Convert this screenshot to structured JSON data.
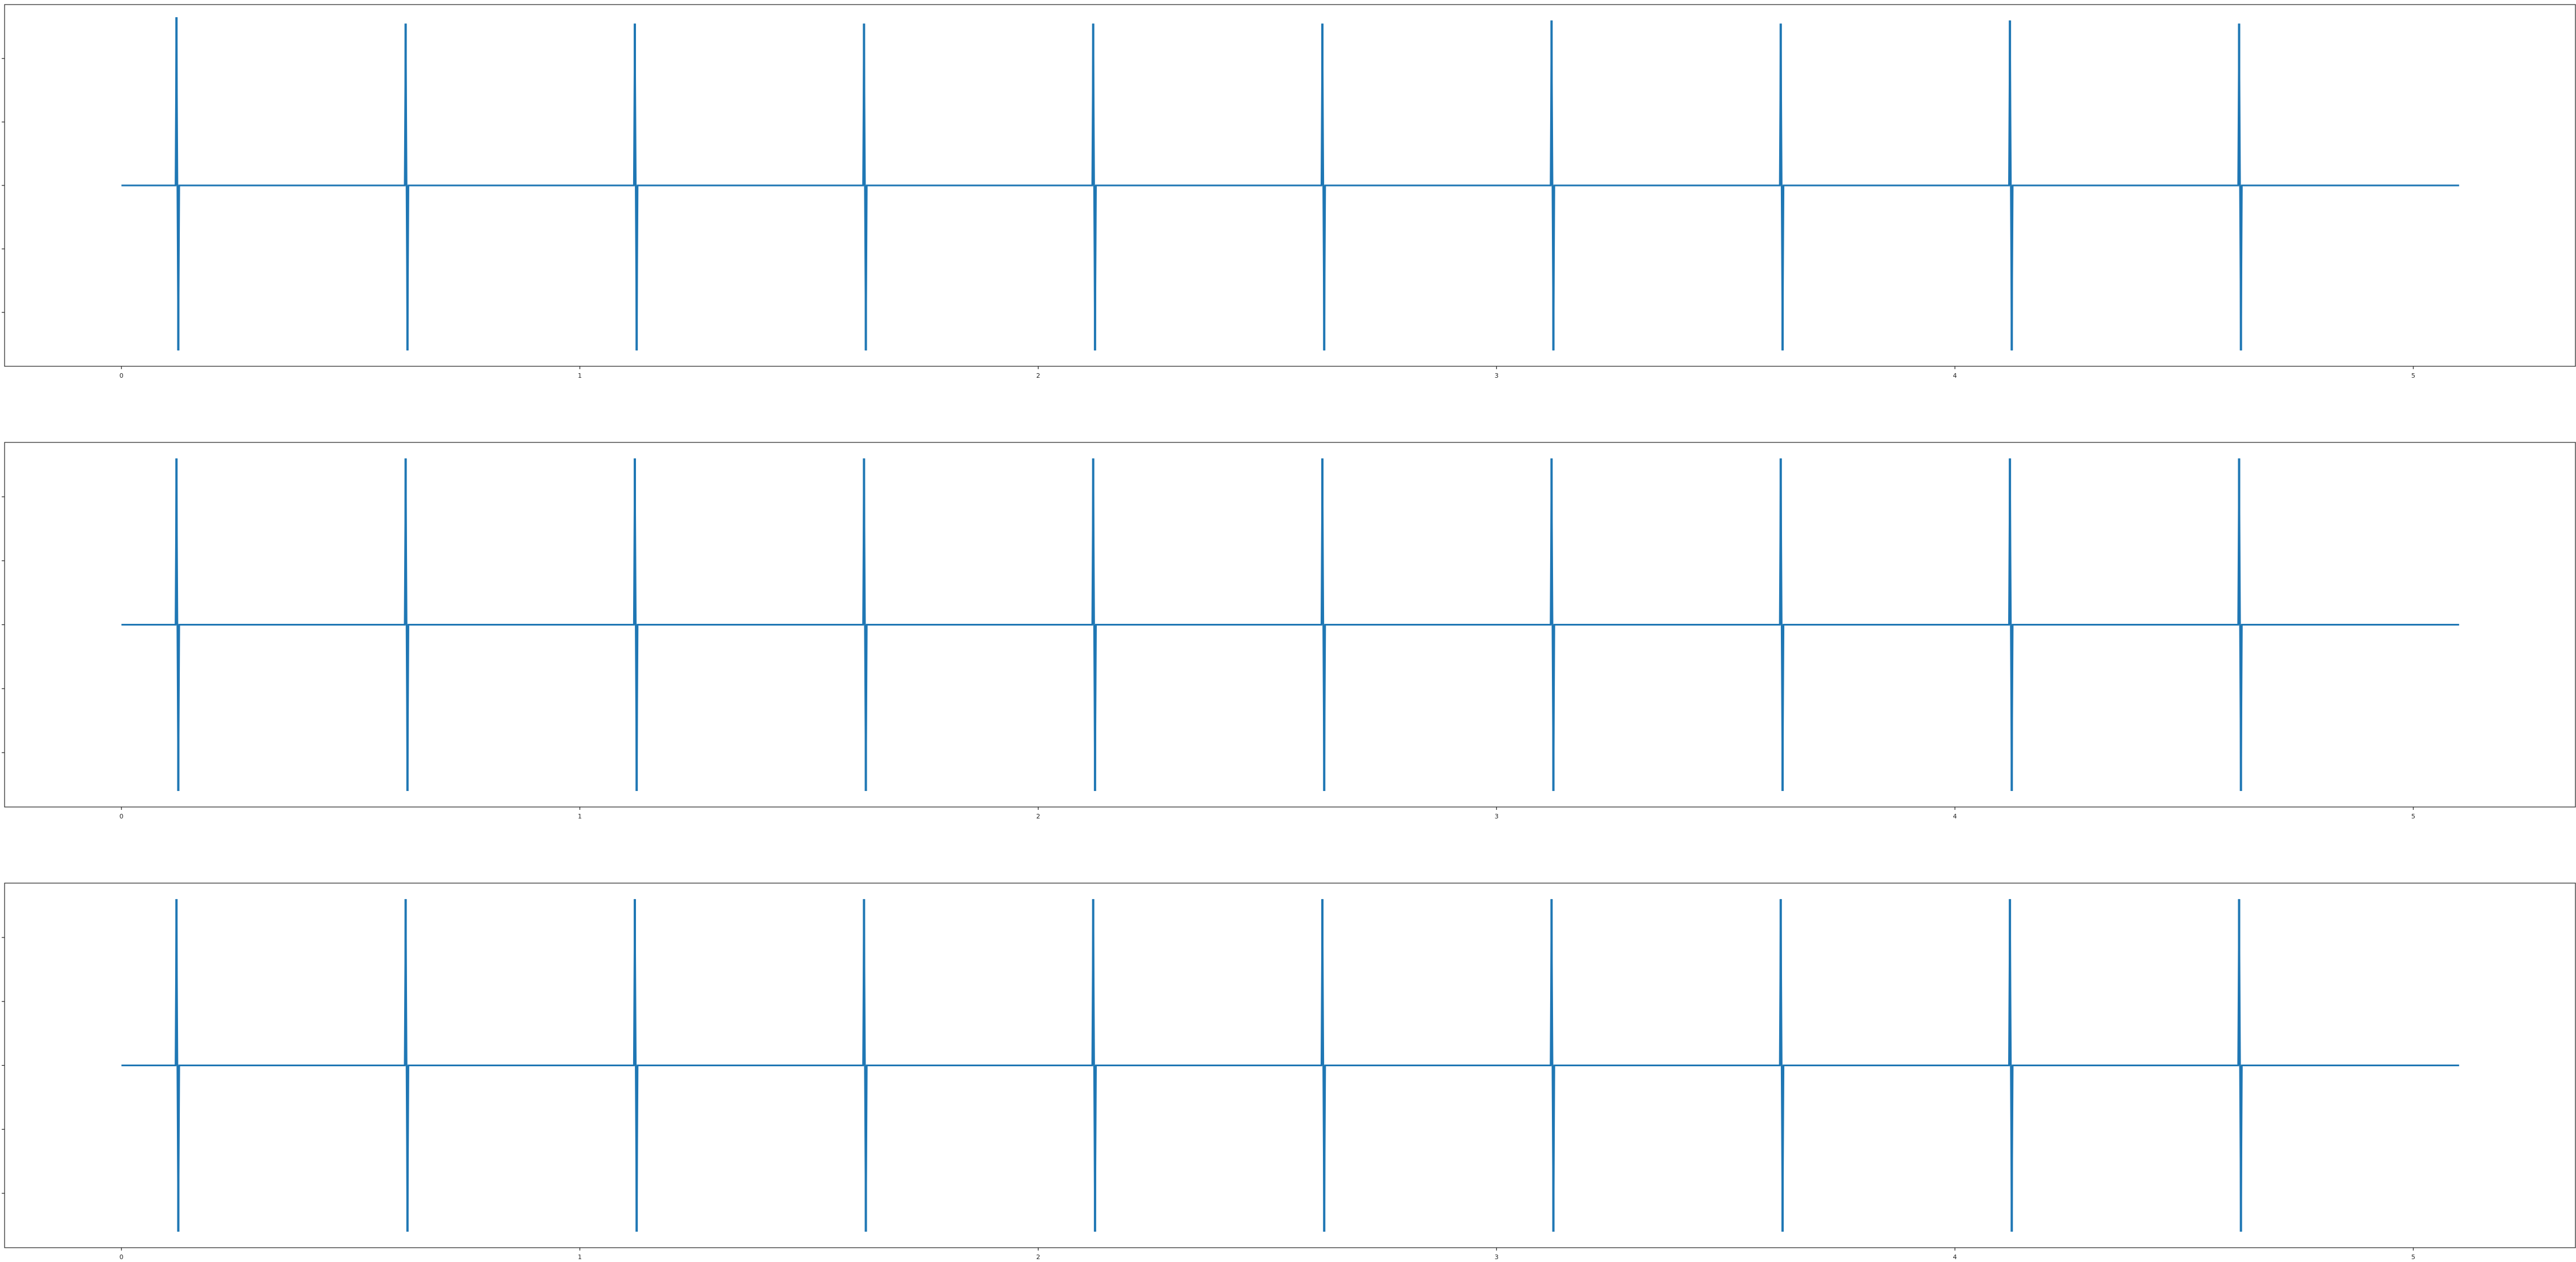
{
  "chart_data": [
    {
      "type": "line",
      "title": "",
      "xlabel": "",
      "ylabel": "",
      "xlim": [
        -0.255,
        5.355
      ],
      "ylim": [
        -5.7,
        5.7
      ],
      "xticks": [
        "0",
        "1",
        "2",
        "3",
        "4",
        "5"
      ],
      "yticks": [
        "-4",
        "-2",
        "0",
        "2",
        "4"
      ],
      "grid": false,
      "color": "#1f77b4",
      "series": [
        {
          "baseline": 0.0,
          "duration": 5.1,
          "spikes": [
            {
              "x": 0.12,
              "peak": 5.3,
              "trough": -5.2
            },
            {
              "x": 0.62,
              "peak": 5.1,
              "trough": -5.2
            },
            {
              "x": 1.12,
              "peak": 5.1,
              "trough": -5.2
            },
            {
              "x": 1.62,
              "peak": 5.1,
              "trough": -5.2
            },
            {
              "x": 2.12,
              "peak": 5.1,
              "trough": -5.2
            },
            {
              "x": 2.62,
              "peak": 5.1,
              "trough": -5.2
            },
            {
              "x": 3.12,
              "peak": 5.2,
              "trough": -5.2
            },
            {
              "x": 3.62,
              "peak": 5.1,
              "trough": -5.2
            },
            {
              "x": 4.12,
              "peak": 5.2,
              "trough": -5.2
            },
            {
              "x": 4.62,
              "peak": 5.1,
              "trough": -5.2
            }
          ]
        }
      ]
    },
    {
      "type": "line",
      "title": "",
      "xlabel": "",
      "ylabel": "",
      "xlim": [
        -0.255,
        5.355
      ],
      "ylim": [
        -5.7,
        5.7
      ],
      "xticks": [
        "0",
        "1",
        "2",
        "3",
        "4",
        "5"
      ],
      "yticks": [
        "-4",
        "-2",
        "0",
        "2",
        "4"
      ],
      "grid": false,
      "color": "#1f77b4",
      "series": [
        {
          "baseline": 0.0,
          "duration": 5.1,
          "spikes": [
            {
              "x": 0.12,
              "peak": 5.2,
              "trough": -5.2
            },
            {
              "x": 0.62,
              "peak": 5.2,
              "trough": -5.2
            },
            {
              "x": 1.12,
              "peak": 5.2,
              "trough": -5.2
            },
            {
              "x": 1.62,
              "peak": 5.2,
              "trough": -5.2
            },
            {
              "x": 2.12,
              "peak": 5.2,
              "trough": -5.2
            },
            {
              "x": 2.62,
              "peak": 5.2,
              "trough": -5.2
            },
            {
              "x": 3.12,
              "peak": 5.2,
              "trough": -5.2
            },
            {
              "x": 3.62,
              "peak": 5.2,
              "trough": -5.2
            },
            {
              "x": 4.12,
              "peak": 5.2,
              "trough": -5.2
            },
            {
              "x": 4.62,
              "peak": 5.2,
              "trough": -5.2
            }
          ]
        }
      ]
    },
    {
      "type": "line",
      "title": "",
      "xlabel": "",
      "ylabel": "",
      "xlim": [
        -0.255,
        5.355
      ],
      "ylim": [
        -5.7,
        5.7
      ],
      "xticks": [
        "0",
        "1",
        "2",
        "3",
        "4",
        "5"
      ],
      "yticks": [
        "-4",
        "-2",
        "0",
        "2",
        "4"
      ],
      "grid": false,
      "color": "#1f77b4",
      "series": [
        {
          "baseline": 0.0,
          "duration": 5.1,
          "spikes": [
            {
              "x": 0.12,
              "peak": 5.2,
              "trough": -5.2
            },
            {
              "x": 0.62,
              "peak": 5.2,
              "trough": -5.2
            },
            {
              "x": 1.12,
              "peak": 5.2,
              "trough": -5.2
            },
            {
              "x": 1.62,
              "peak": 5.2,
              "trough": -5.2
            },
            {
              "x": 2.12,
              "peak": 5.2,
              "trough": -5.2
            },
            {
              "x": 2.62,
              "peak": 5.2,
              "trough": -5.2
            },
            {
              "x": 3.12,
              "peak": 5.2,
              "trough": -5.2
            },
            {
              "x": 3.62,
              "peak": 5.2,
              "trough": -5.2
            },
            {
              "x": 4.12,
              "peak": 5.2,
              "trough": -5.2
            },
            {
              "x": 4.62,
              "peak": 5.2,
              "trough": -5.2
            }
          ]
        }
      ]
    }
  ]
}
